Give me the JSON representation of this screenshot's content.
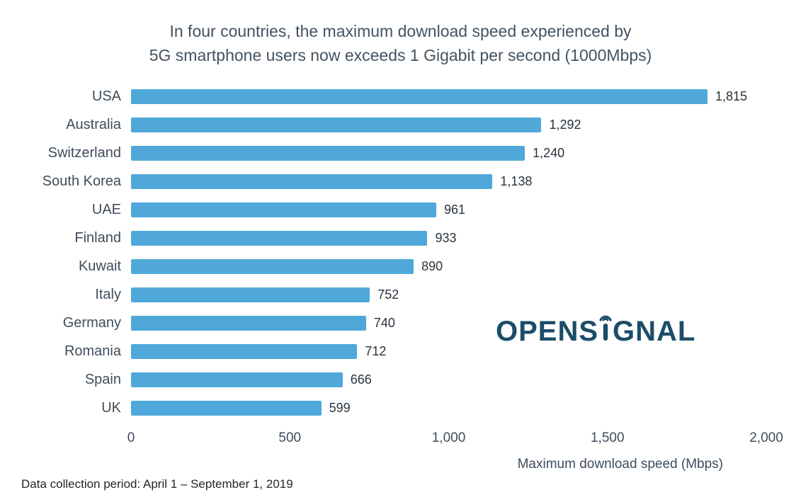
{
  "chart_data": {
    "type": "bar",
    "orientation": "horizontal",
    "title": "In four countries, the maximum download speed experienced by 5G smartphone users now exceeds 1 Gigabit per second (1000Mbps)",
    "title_lines": [
      "In four countries, the maximum download speed experienced by",
      "5G smartphone users now exceeds 1 Gigabit per second (1000Mbps)"
    ],
    "categories": [
      "USA",
      "Australia",
      "Switzerland",
      "South Korea",
      "UAE",
      "Finland",
      "Kuwait",
      "Italy",
      "Germany",
      "Romania",
      "Spain",
      "UK"
    ],
    "values": [
      1815,
      1292,
      1240,
      1138,
      961,
      933,
      890,
      752,
      740,
      712,
      666,
      599
    ],
    "value_labels": [
      "1,815",
      "1,292",
      "1,240",
      "1,138",
      "961",
      "933",
      "890",
      "752",
      "740",
      "712",
      "666",
      "599"
    ],
    "xlabel": "Maximum download speed (Mbps)",
    "x_ticks": [
      {
        "value": 0,
        "label": "0"
      },
      {
        "value": 500,
        "label": "500"
      },
      {
        "value": 1000,
        "label": "1,000"
      },
      {
        "value": 1500,
        "label": "1,500"
      },
      {
        "value": 2000,
        "label": "2,000"
      }
    ],
    "xlim": [
      0,
      2000
    ],
    "bar_color": "#4FA8D9",
    "grid": false,
    "legend": false
  },
  "branding": {
    "logo_text": "OPENSIGNAL",
    "logo_left": "OPENS",
    "logo_right": "GNAL",
    "logo_color": "#1C4D68"
  },
  "footer": {
    "note": "Data collection period: April 1 – September 1, 2019"
  }
}
